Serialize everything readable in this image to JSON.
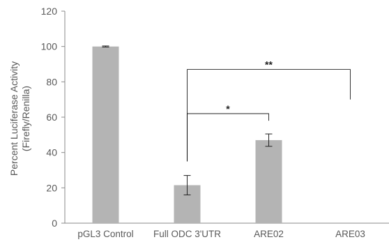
{
  "chart_data": {
    "type": "bar",
    "title": "",
    "xlabel": "",
    "ylabel_line1": "Percent Luciferase Activity",
    "ylabel_line2": "(Firefly/Renilla)",
    "ylim": [
      0,
      120
    ],
    "yticks": [
      "0",
      "20",
      "40",
      "60",
      "80",
      "100",
      "120"
    ],
    "grid": false,
    "categories": [
      "pGL3 Control",
      "Full ODC 3'UTR",
      "ARE02",
      "ARE03"
    ],
    "values": [
      100,
      21.5,
      47,
      0
    ],
    "errors": [
      0.3,
      5.5,
      3.5,
      0
    ],
    "significance": [
      {
        "from": 1,
        "to": 2,
        "label": "*",
        "y": 62
      },
      {
        "from": 1,
        "to": 3,
        "label": "**",
        "y": 87
      }
    ],
    "colors": {
      "bar": "#b4b4b4",
      "axis": "#888888",
      "bracket": "#000000",
      "error": "#222222"
    }
  }
}
